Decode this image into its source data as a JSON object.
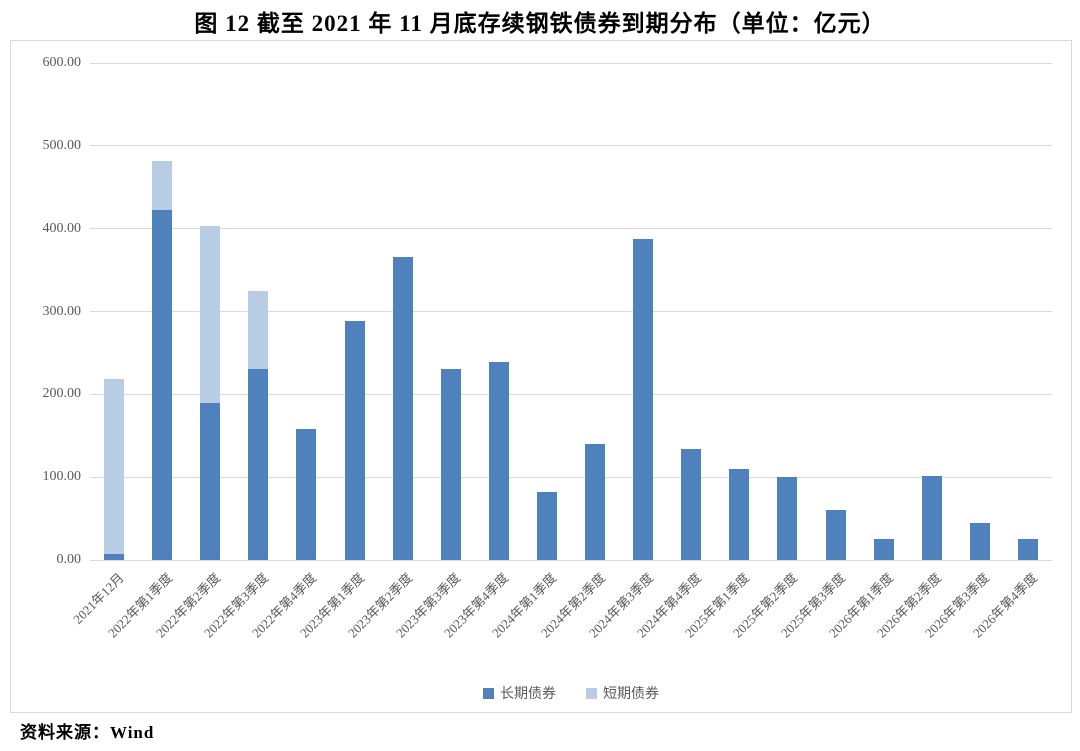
{
  "title": "图 12  截至 2021 年 11 月底存续钢铁债券到期分布（单位：亿元）",
  "source": "资料来源：Wind",
  "colors": {
    "long_term": "#4F81BD",
    "short_term": "#B8CCE4",
    "gridline": "#D9D9D9",
    "axis_text": "#595959",
    "frame_border": "#D9D9D9",
    "title_text": "#000000"
  },
  "y_axis": {
    "ticks": [
      "600.00",
      "500.00",
      "400.00",
      "300.00",
      "200.00",
      "100.00",
      "0.00"
    ],
    "min": 0,
    "max": 600,
    "step": 100
  },
  "legend": [
    {
      "label": "长期债券",
      "color": "#4F81BD"
    },
    {
      "label": "短期债券",
      "color": "#B8CCE4"
    }
  ],
  "chart_data": {
    "type": "bar",
    "stacked": true,
    "title": "图 12  截至 2021 年 11 月底存续钢铁债券到期分布（单位：亿元）",
    "unit": "亿元",
    "categories": [
      "2021年12月",
      "2022年第1季度",
      "2022年第2季度",
      "2022年第3季度",
      "2022年第4季度",
      "2023年第1季度",
      "2023年第2季度",
      "2023年第3季度",
      "2023年第4季度",
      "2024年第1季度",
      "2024年第2季度",
      "2024年第3季度",
      "2024年第4季度",
      "2025年第1季度",
      "2025年第2季度",
      "2025年第3季度",
      "2026年第1季度",
      "2026年第2季度",
      "2026年第3季度",
      "2026年第4季度"
    ],
    "series": [
      {
        "name": "长期债券",
        "color": "#4F81BD",
        "values": [
          7,
          423,
          189,
          231,
          158,
          288,
          366,
          230,
          239,
          82,
          140,
          387,
          134,
          110,
          100,
          60,
          25,
          102,
          45,
          25
        ]
      },
      {
        "name": "短期债券",
        "color": "#B8CCE4",
        "values": [
          211,
          59,
          214,
          94,
          0,
          0,
          0,
          0,
          0,
          0,
          0,
          0,
          0,
          0,
          0,
          0,
          0,
          0,
          0,
          0
        ]
      }
    ],
    "ylim": [
      0,
      600
    ],
    "grid": true,
    "legend_position": "bottom"
  }
}
